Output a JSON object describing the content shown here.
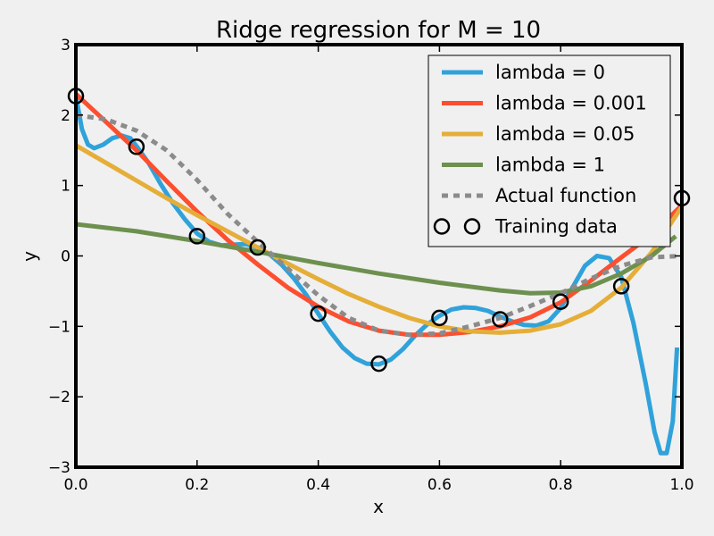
{
  "chart_data": {
    "type": "line",
    "title": "Ridge regression for M = 10",
    "xlabel": "x",
    "ylabel": "y",
    "xlim": [
      0,
      1
    ],
    "ylim": [
      -3,
      3
    ],
    "x_ticks": [
      "0.0",
      "0.2",
      "0.4",
      "0.6",
      "0.8",
      "1.0"
    ],
    "y_ticks": [
      "3",
      "2",
      "1",
      "0",
      "−1",
      "−2",
      "−3"
    ],
    "grid": false,
    "legend_position": "top-right",
    "series": [
      {
        "name": "lambda = 0",
        "color": "#30a2da",
        "style": "solid",
        "points": [
          [
            0.0,
            2.27
          ],
          [
            0.01,
            1.8
          ],
          [
            0.02,
            1.58
          ],
          [
            0.03,
            1.53
          ],
          [
            0.045,
            1.58
          ],
          [
            0.06,
            1.67
          ],
          [
            0.075,
            1.71
          ],
          [
            0.09,
            1.67
          ],
          [
            0.1,
            1.56
          ],
          [
            0.12,
            1.32
          ],
          [
            0.14,
            1.02
          ],
          [
            0.16,
            0.75
          ],
          [
            0.18,
            0.52
          ],
          [
            0.2,
            0.32
          ],
          [
            0.22,
            0.2
          ],
          [
            0.24,
            0.15
          ],
          [
            0.26,
            0.16
          ],
          [
            0.28,
            0.17
          ],
          [
            0.3,
            0.12
          ],
          [
            0.32,
            0.02
          ],
          [
            0.34,
            -0.13
          ],
          [
            0.36,
            -0.32
          ],
          [
            0.38,
            -0.55
          ],
          [
            0.4,
            -0.82
          ],
          [
            0.42,
            -1.08
          ],
          [
            0.44,
            -1.3
          ],
          [
            0.46,
            -1.45
          ],
          [
            0.48,
            -1.53
          ],
          [
            0.5,
            -1.54
          ],
          [
            0.52,
            -1.47
          ],
          [
            0.54,
            -1.32
          ],
          [
            0.56,
            -1.13
          ],
          [
            0.58,
            -0.97
          ],
          [
            0.6,
            -0.85
          ],
          [
            0.62,
            -0.76
          ],
          [
            0.64,
            -0.73
          ],
          [
            0.66,
            -0.74
          ],
          [
            0.68,
            -0.78
          ],
          [
            0.7,
            -0.86
          ],
          [
            0.72,
            -0.93
          ],
          [
            0.74,
            -0.98
          ],
          [
            0.76,
            -0.99
          ],
          [
            0.78,
            -0.93
          ],
          [
            0.8,
            -0.74
          ],
          [
            0.82,
            -0.44
          ],
          [
            0.84,
            -0.14
          ],
          [
            0.86,
            0.0
          ],
          [
            0.88,
            -0.03
          ],
          [
            0.9,
            -0.3
          ],
          [
            0.92,
            -0.95
          ],
          [
            0.94,
            -1.8
          ],
          [
            0.955,
            -2.5
          ],
          [
            0.965,
            -2.8
          ],
          [
            0.975,
            -2.8
          ],
          [
            0.985,
            -2.35
          ],
          [
            0.992,
            -1.3
          ]
        ]
      },
      {
        "name": "lambda = 0.001",
        "color": "#fc4f30",
        "style": "solid",
        "points": [
          [
            0.0,
            2.3
          ],
          [
            0.05,
            1.9
          ],
          [
            0.1,
            1.5
          ],
          [
            0.15,
            1.06
          ],
          [
            0.2,
            0.63
          ],
          [
            0.25,
            0.23
          ],
          [
            0.3,
            -0.12
          ],
          [
            0.35,
            -0.45
          ],
          [
            0.4,
            -0.72
          ],
          [
            0.45,
            -0.93
          ],
          [
            0.5,
            -1.06
          ],
          [
            0.55,
            -1.12
          ],
          [
            0.6,
            -1.12
          ],
          [
            0.65,
            -1.08
          ],
          [
            0.7,
            -1.0
          ],
          [
            0.75,
            -0.87
          ],
          [
            0.8,
            -0.66
          ],
          [
            0.85,
            -0.35
          ],
          [
            0.9,
            -0.02
          ],
          [
            0.95,
            0.3
          ],
          [
            1.0,
            0.72
          ]
        ]
      },
      {
        "name": "lambda = 0.05",
        "color": "#e5ae38",
        "style": "solid",
        "points": [
          [
            0.0,
            1.57
          ],
          [
            0.05,
            1.32
          ],
          [
            0.1,
            1.07
          ],
          [
            0.15,
            0.82
          ],
          [
            0.2,
            0.58
          ],
          [
            0.25,
            0.35
          ],
          [
            0.3,
            0.12
          ],
          [
            0.35,
            -0.11
          ],
          [
            0.4,
            -0.33
          ],
          [
            0.45,
            -0.54
          ],
          [
            0.5,
            -0.72
          ],
          [
            0.55,
            -0.88
          ],
          [
            0.6,
            -1.0
          ],
          [
            0.65,
            -1.07
          ],
          [
            0.7,
            -1.09
          ],
          [
            0.75,
            -1.06
          ],
          [
            0.8,
            -0.97
          ],
          [
            0.85,
            -0.78
          ],
          [
            0.9,
            -0.45
          ],
          [
            0.95,
            0.05
          ],
          [
            1.0,
            0.7
          ]
        ]
      },
      {
        "name": "lambda = 1",
        "color": "#6d904f",
        "style": "solid",
        "points": [
          [
            0.0,
            0.45
          ],
          [
            0.1,
            0.35
          ],
          [
            0.2,
            0.21
          ],
          [
            0.3,
            0.06
          ],
          [
            0.4,
            -0.1
          ],
          [
            0.5,
            -0.25
          ],
          [
            0.6,
            -0.38
          ],
          [
            0.7,
            -0.49
          ],
          [
            0.75,
            -0.53
          ],
          [
            0.8,
            -0.52
          ],
          [
            0.85,
            -0.43
          ],
          [
            0.9,
            -0.25
          ],
          [
            0.95,
            0.0
          ],
          [
            0.99,
            0.28
          ]
        ]
      },
      {
        "name": "Actual function",
        "color": "#8b8b8b",
        "style": "dotted",
        "points": [
          [
            0.0,
            2.0
          ],
          [
            0.05,
            1.94
          ],
          [
            0.1,
            1.78
          ],
          [
            0.15,
            1.5
          ],
          [
            0.2,
            1.08
          ],
          [
            0.25,
            0.6
          ],
          [
            0.3,
            0.2
          ],
          [
            0.35,
            -0.18
          ],
          [
            0.4,
            -0.56
          ],
          [
            0.45,
            -0.88
          ],
          [
            0.5,
            -1.06
          ],
          [
            0.55,
            -1.12
          ],
          [
            0.6,
            -1.1
          ],
          [
            0.65,
            -1.0
          ],
          [
            0.7,
            -0.88
          ],
          [
            0.75,
            -0.71
          ],
          [
            0.8,
            -0.53
          ],
          [
            0.85,
            -0.32
          ],
          [
            0.9,
            -0.14
          ],
          [
            0.95,
            -0.02
          ],
          [
            1.0,
            0.0
          ]
        ]
      }
    ],
    "training_data": {
      "name": "Training data",
      "x": [
        0.0,
        0.1,
        0.2,
        0.3,
        0.4,
        0.5,
        0.6,
        0.7,
        0.8,
        0.9,
        1.0
      ],
      "y": [
        2.27,
        1.55,
        0.28,
        0.12,
        -0.82,
        -1.53,
        -0.88,
        -0.9,
        -0.65,
        -0.43,
        0.82
      ]
    }
  }
}
